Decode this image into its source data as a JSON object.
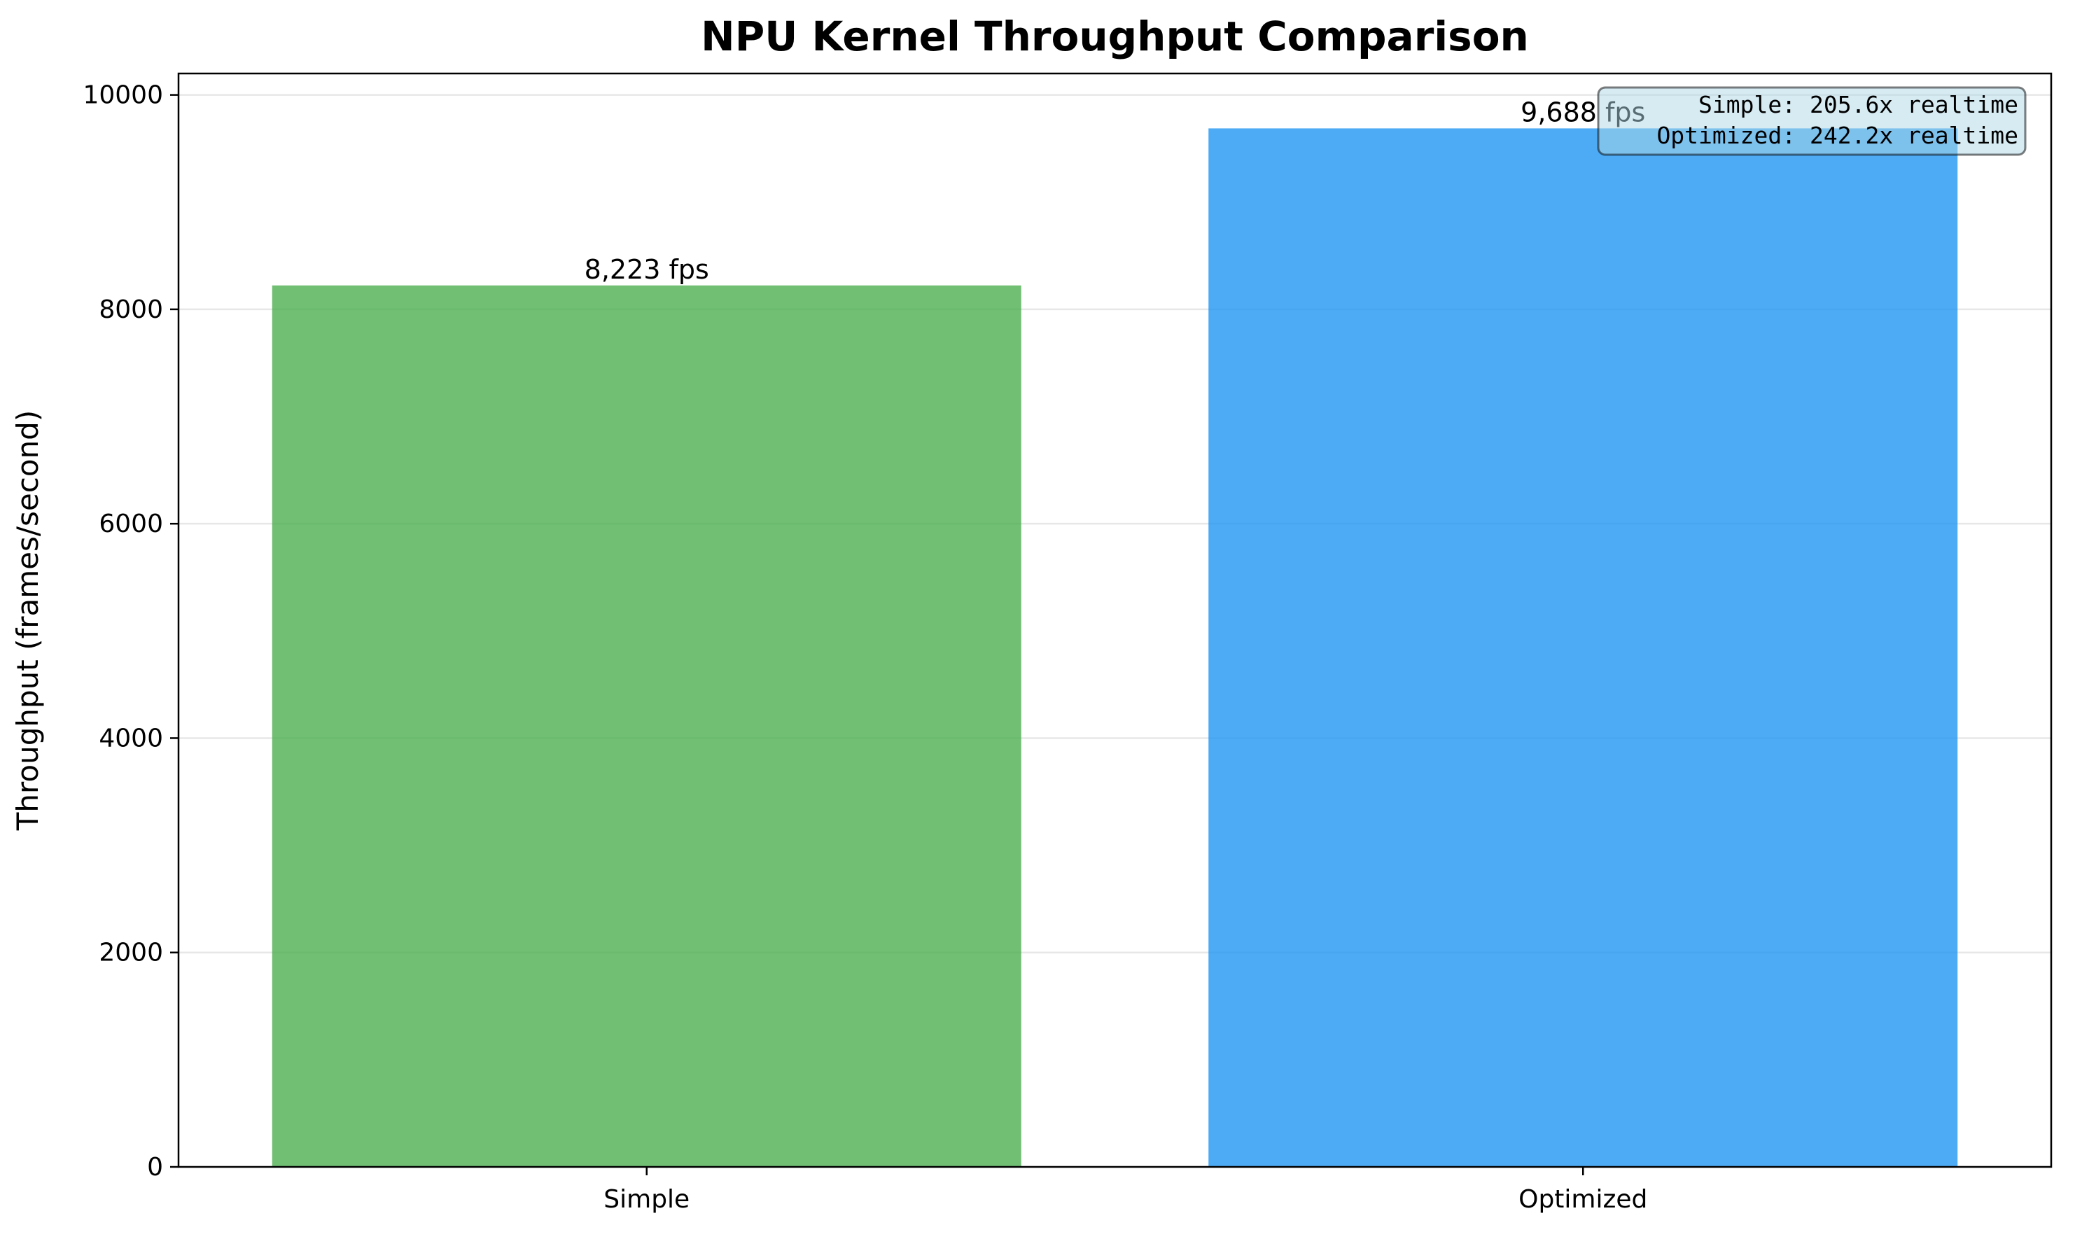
{
  "chart_data": {
    "type": "bar",
    "title": "NPU Kernel Throughput Comparison",
    "xlabel": "",
    "ylabel": "Throughput (frames/second)",
    "categories": [
      "Simple",
      "Optimized"
    ],
    "values": [
      8223,
      9688
    ],
    "value_labels": [
      "8,223 fps",
      "9,688 fps"
    ],
    "colors": [
      "#4CAF50",
      "#2196F3"
    ],
    "ylim": [
      0,
      10200
    ],
    "yticks": [
      0,
      2000,
      4000,
      6000,
      8000,
      10000
    ],
    "grid": "y",
    "annotation": {
      "lines": [
        "Simple: 205.6x realtime",
        "Optimized: 242.2x realtime"
      ],
      "placement": "top-right",
      "background": "#ADD8E6"
    }
  }
}
